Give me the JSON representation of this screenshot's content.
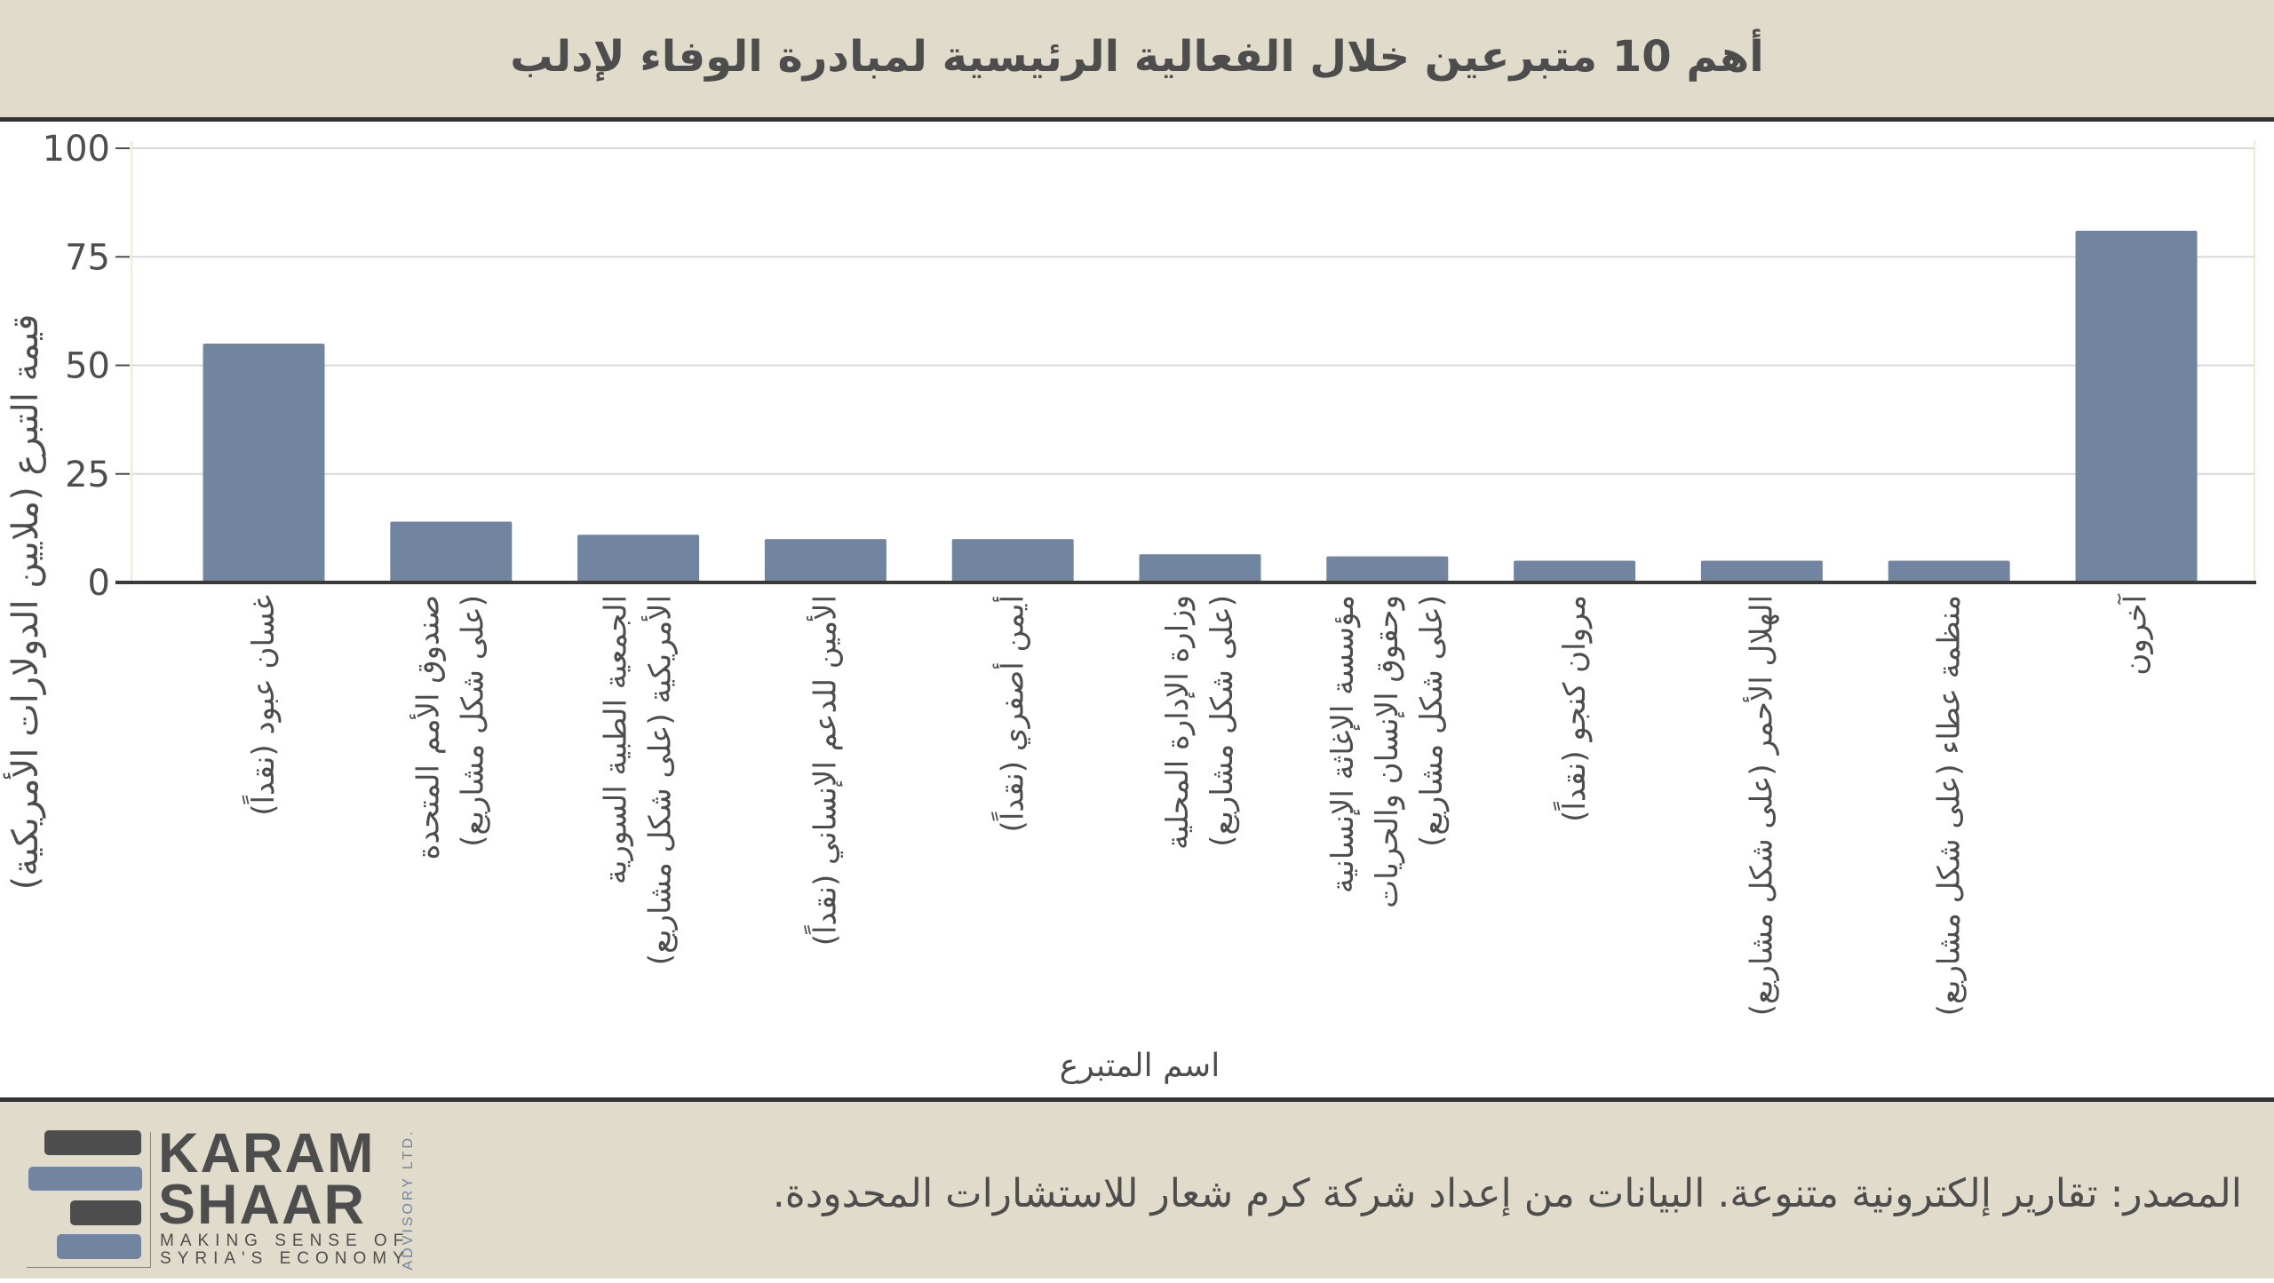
{
  "header": {
    "title": "أهم 10 متبرعين خلال الفعالية الرئيسية لمبادرة الوفاء لإدلب"
  },
  "chart_data": {
    "type": "bar",
    "title": "أهم 10 متبرعين خلال الفعالية الرئيسية لمبادرة الوفاء لإدلب",
    "xlabel": "اسم المتبرع",
    "ylabel": "قيمة التبرع (ملايين الدولارات الأمريكية)",
    "ylim": [
      0,
      100
    ],
    "yticks": [
      "0",
      "25",
      "50",
      "75",
      "100"
    ],
    "ytick_values": [
      0,
      25,
      50,
      75,
      100
    ],
    "grid": true,
    "bar_color": "#7285a0",
    "categories": [
      [
        "غسان عبود (نقداً)"
      ],
      [
        "صندوق الأمم المتحدة",
        "(على شكل مشاريع)"
      ],
      [
        "الجمعية الطبية السورية",
        "الأمريكية (على شكل مشاريع)"
      ],
      [
        "الأمين للدعم الإنساني (نقداً)"
      ],
      [
        "أيمن أصفري (نقداً)"
      ],
      [
        "وزارة الإدارة المحلية",
        "(على شكل مشاريع)"
      ],
      [
        "مؤسسة الإغاثة الإنسانية",
        "وحقوق الإنسان والحريات",
        "(على شكل مشاريع)"
      ],
      [
        "مروان كنجو (نقداً)"
      ],
      [
        "الهلال الأحمر (على شكل مشاريع)"
      ],
      [
        "منظمة عطاء (على شكل مشاريع)"
      ],
      [
        "آخرون"
      ]
    ],
    "values": [
      55,
      14,
      11,
      10,
      10,
      6.5,
      6,
      5,
      5,
      5,
      81
    ]
  },
  "footer": {
    "source": "المصدر: تقارير إلكترونية متنوعة. البيانات من إعداد شركة كرم شعار للاستشارات المحدودة.",
    "logo": {
      "line1": "KARAM",
      "line2": "SHAAR",
      "tagline1": "MAKING SENSE OF",
      "tagline2": "SYRIA'S ECONOMY",
      "vertical": "ADVISORY LTD."
    }
  }
}
